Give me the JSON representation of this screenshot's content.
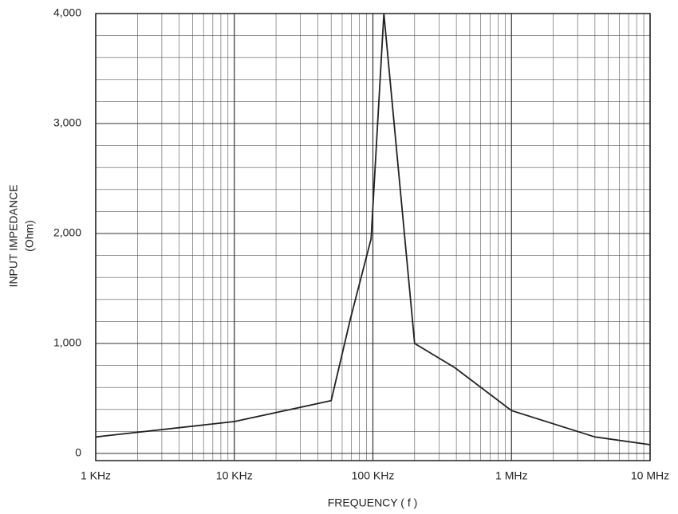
{
  "chart_data": {
    "type": "line",
    "xlabel": "FREQUENCY ( f )",
    "ylabel": [
      "INPUT IMPEDANCE",
      "(Ohm)"
    ],
    "x": [
      1000,
      10000,
      50000,
      69000,
      97000,
      120000,
      200000,
      390000,
      1000000,
      4000000,
      10000000
    ],
    "series": [
      {
        "color": "#222222",
        "values": [
          150,
          290,
          480,
          1230,
          1950,
          4000,
          1000,
          780,
          390,
          150,
          80
        ]
      }
    ],
    "xscale": "log",
    "xlim": [
      1000,
      10000000
    ],
    "xticks": [
      {
        "value": 1000,
        "label": "1 KHz"
      },
      {
        "value": 10000,
        "label": "10 KHz"
      },
      {
        "value": 100000,
        "label": "100 KHz"
      },
      {
        "value": 1000000,
        "label": "1 MHz"
      },
      {
        "value": 10000000,
        "label": "10 MHz"
      }
    ],
    "ylim": [
      0,
      4000
    ],
    "yticks": [
      0,
      {
        "value": 1000,
        "label": "1,000"
      },
      {
        "value": 2000,
        "label": "2,000"
      },
      {
        "value": 3000,
        "label": "3,000"
      },
      {
        "value": 4000,
        "label": "4,000"
      }
    ],
    "grid": true,
    "minor_grid": true
  }
}
